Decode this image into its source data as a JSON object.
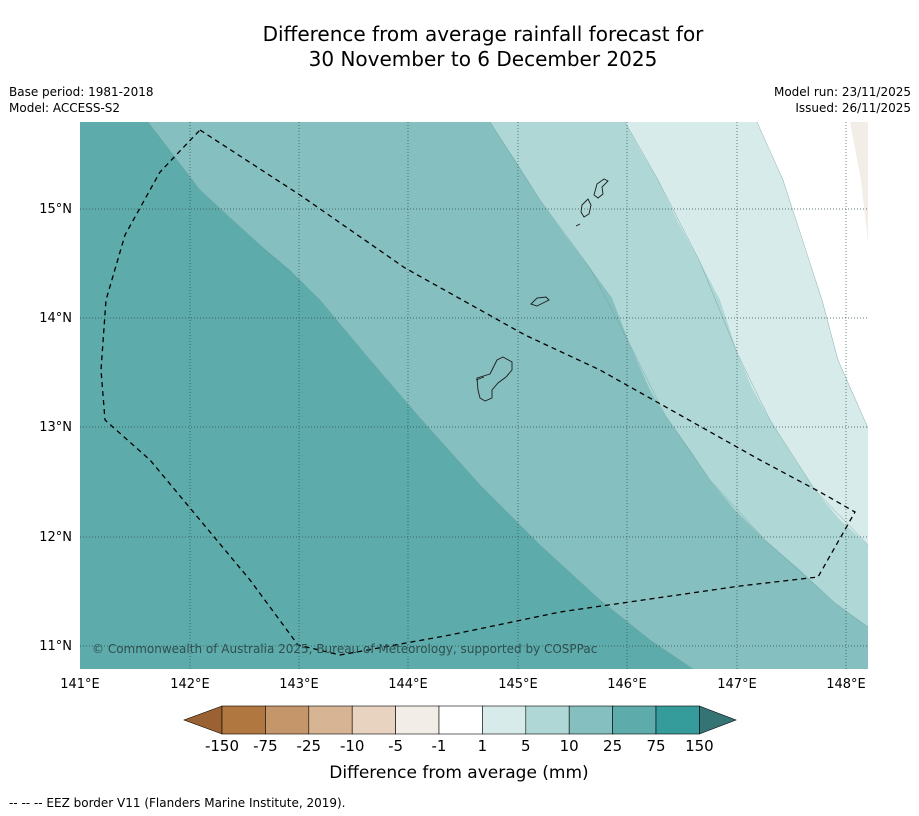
{
  "title": {
    "line1": "Difference from average rainfall forecast for",
    "line2": "30 November to 6 December 2025"
  },
  "meta": {
    "base_period": "Base period: 1981-2018",
    "model": "Model: ACCESS-S2",
    "model_run": "Model run: 23/11/2025",
    "issued": "Issued: 26/11/2025"
  },
  "map": {
    "copyright": "© Commonwealth of Australia 2025, Bureau of Meteorology, supported by COSPPac",
    "lat_ticks": [
      "15°N",
      "14°N",
      "13°N",
      "12°N",
      "11°N"
    ],
    "lon_ticks": [
      "141°E",
      "142°E",
      "143°E",
      "144°E",
      "145°E",
      "146°E",
      "147°E",
      "148°E"
    ]
  },
  "colorbar": {
    "labels": [
      "-150",
      "-75",
      "-25",
      "-10",
      "-5",
      "-1",
      "1",
      "5",
      "10",
      "25",
      "75",
      "150"
    ],
    "colors": [
      "#9a6232",
      "#b07840",
      "#c4966a",
      "#d6b494",
      "#e8d2c0",
      "#f3ede8",
      "#ffffff",
      "#d6ebea",
      "#aed7d6",
      "#86bfbf",
      "#5eabab",
      "#369c9b",
      "#347474"
    ],
    "title": "Difference from average (mm)"
  },
  "footer": "--  --  -- EEZ border V11 (Flanders Marine Institute, 2019)."
}
